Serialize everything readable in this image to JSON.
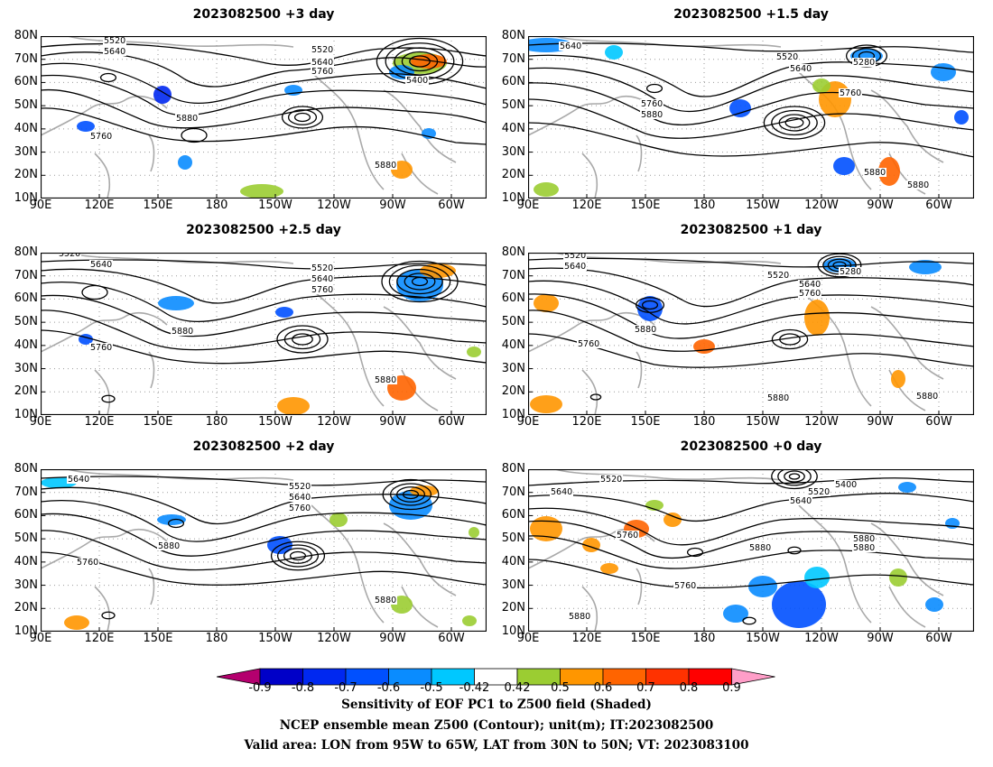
{
  "panels": [
    {
      "title": "2023082500  +3 day",
      "contour_labels": [
        "5520",
        "5640",
        "5520",
        "5640",
        "5760",
        "5400",
        "5880",
        "5760",
        "5880"
      ]
    },
    {
      "title": "2023082500  +1.5 day",
      "contour_labels": [
        "5640",
        "5520",
        "5640",
        "5280",
        "5760",
        "5760",
        "5880",
        "5880",
        "5880"
      ]
    },
    {
      "title": "2023082500  +2.5 day",
      "contour_labels": [
        "5520",
        "5640",
        "5520",
        "5640",
        "5760",
        "5880",
        "5760",
        "5880"
      ]
    },
    {
      "title": "2023082500  +1 day",
      "contour_labels": [
        "5520",
        "5640",
        "5520",
        "5640",
        "5760",
        "5280",
        "5880",
        "5760",
        "5880",
        "5880"
      ]
    },
    {
      "title": "2023082500  +2 day",
      "contour_labels": [
        "5640",
        "5520",
        "5640",
        "5760",
        "5880",
        "5760",
        "5880"
      ]
    },
    {
      "title": "2023082500  +0 day",
      "contour_labels": [
        "5520",
        "5640",
        "5520",
        "5400",
        "5640",
        "5760",
        "5880",
        "5760",
        "5880",
        "5880",
        "5880"
      ]
    }
  ],
  "axes": {
    "lat_ticks": [
      "80N",
      "70N",
      "60N",
      "50N",
      "40N",
      "30N",
      "20N",
      "10N"
    ],
    "lon_ticks": [
      "90E",
      "120E",
      "150E",
      "180",
      "150W",
      "120W",
      "90W",
      "60W"
    ]
  },
  "colorbar": {
    "labels": [
      "-0.9",
      "-0.8",
      "-0.7",
      "-0.6",
      "-0.5",
      "-0.42",
      "0.42",
      "0.5",
      "0.6",
      "0.7",
      "0.8",
      "0.9"
    ],
    "colors": [
      "#b4006e",
      "#0000c8",
      "#0028f0",
      "#0050ff",
      "#0a8cff",
      "#00c8ff",
      "#ffffff",
      "#9bcd32",
      "#ff9600",
      "#ff6400",
      "#ff3200",
      "#ff0000",
      "#ff9ec8"
    ]
  },
  "footer": {
    "line1": "Sensitivity of EOF PC1 to Z500 field (Shaded)",
    "line2": "NCEP ensemble mean Z500 (Contour); unit(m); IT:2023082500",
    "line3": "Valid area: LON from 95W to 65W, LAT from 30N to 50N; VT: 2023083100"
  }
}
